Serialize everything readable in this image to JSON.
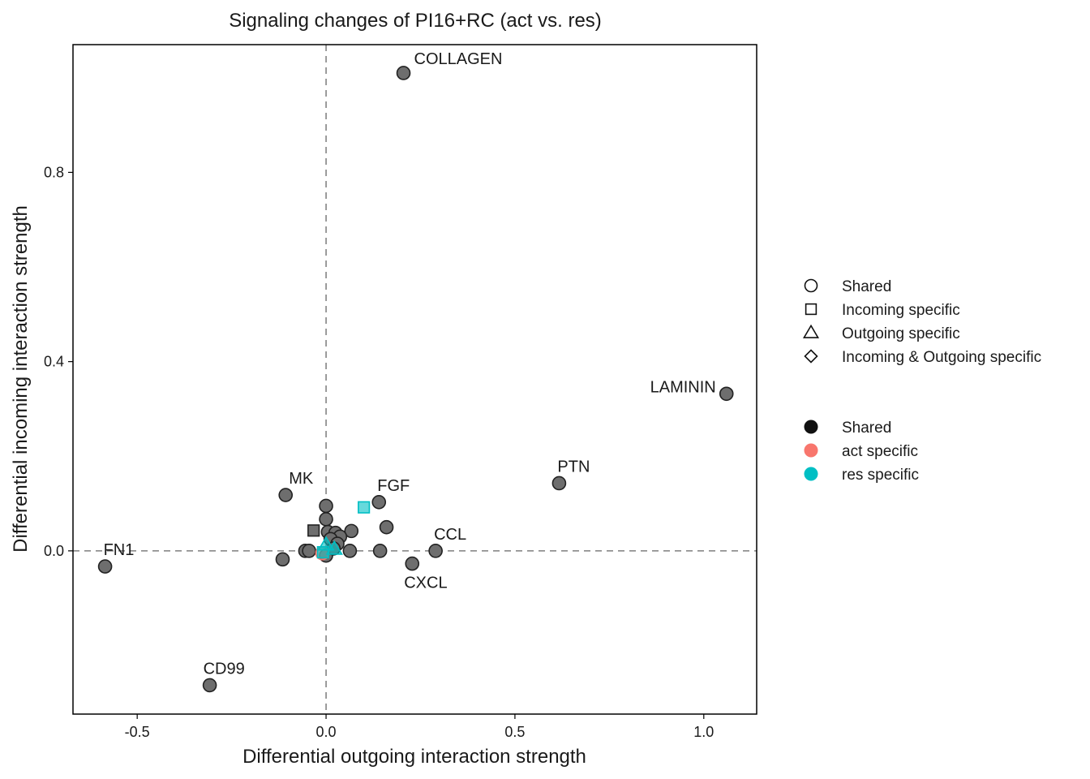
{
  "chart_data": {
    "type": "scatter",
    "title": "Signaling changes of PI16+RC (act vs. res)",
    "xlabel": "Differential outgoing interaction strength",
    "ylabel": "Differential incoming interaction strength",
    "xlim": [
      -0.67,
      1.14
    ],
    "ylim": [
      -0.345,
      1.07
    ],
    "xticks": [
      {
        "value": -0.5,
        "label": "-0.5"
      },
      {
        "value": 0.0,
        "label": "0.0"
      },
      {
        "value": 0.5,
        "label": "0.5"
      },
      {
        "value": 1.0,
        "label": "1.0"
      }
    ],
    "yticks": [
      {
        "value": 0.0,
        "label": "0.0"
      },
      {
        "value": 0.4,
        "label": "0.4"
      },
      {
        "value": 0.8,
        "label": "0.8"
      }
    ],
    "reference_lines": {
      "x": 0,
      "y": 0,
      "style": "dashed"
    },
    "grid": false,
    "colors": {
      "Shared": "#111111",
      "act specific": "#F8766D",
      "res specific": "#00BFC4",
      "point_fill_shared": "#6e6e6e"
    },
    "points": [
      {
        "x": 0.205,
        "y": 1.01,
        "label": "COLLAGEN",
        "shape": "circle",
        "group": "Shared"
      },
      {
        "x": 1.06,
        "y": 0.332,
        "label": "LAMININ",
        "shape": "circle",
        "group": "Shared"
      },
      {
        "x": 0.617,
        "y": 0.143,
        "label": "PTN",
        "shape": "circle",
        "group": "Shared"
      },
      {
        "x": 0.14,
        "y": 0.103,
        "label": "FGF",
        "shape": "circle",
        "group": "Shared"
      },
      {
        "x": -0.107,
        "y": 0.118,
        "label": "MK",
        "shape": "circle",
        "group": "Shared"
      },
      {
        "x": 0.29,
        "y": 0.0,
        "label": "CCL",
        "shape": "circle",
        "group": "Shared"
      },
      {
        "x": 0.228,
        "y": -0.027,
        "label": "CXCL",
        "shape": "circle",
        "group": "Shared"
      },
      {
        "x": -0.585,
        "y": -0.033,
        "label": "FN1",
        "shape": "circle",
        "group": "Shared"
      },
      {
        "x": -0.308,
        "y": -0.284,
        "label": "CD99",
        "shape": "circle",
        "group": "Shared"
      },
      {
        "x": 0.0,
        "y": 0.095,
        "label": "",
        "shape": "circle",
        "group": "Shared"
      },
      {
        "x": 0.0,
        "y": 0.067,
        "label": "",
        "shape": "circle",
        "group": "Shared"
      },
      {
        "x": 0.16,
        "y": 0.05,
        "label": "",
        "shape": "circle",
        "group": "Shared"
      },
      {
        "x": 0.067,
        "y": 0.042,
        "label": "",
        "shape": "circle",
        "group": "Shared"
      },
      {
        "x": 0.005,
        "y": 0.04,
        "label": "",
        "shape": "circle",
        "group": "Shared"
      },
      {
        "x": 0.025,
        "y": 0.038,
        "label": "",
        "shape": "circle",
        "group": "Shared"
      },
      {
        "x": 0.037,
        "y": 0.03,
        "label": "",
        "shape": "circle",
        "group": "Shared"
      },
      {
        "x": 0.012,
        "y": 0.025,
        "label": "",
        "shape": "circle",
        "group": "Shared"
      },
      {
        "x": 0.03,
        "y": 0.015,
        "label": "",
        "shape": "circle",
        "group": "Shared"
      },
      {
        "x": -0.115,
        "y": -0.018,
        "label": "",
        "shape": "circle",
        "group": "Shared"
      },
      {
        "x": -0.055,
        "y": 0.0,
        "label": "",
        "shape": "circle",
        "group": "Shared"
      },
      {
        "x": -0.045,
        "y": 0.0,
        "label": "",
        "shape": "circle",
        "group": "Shared"
      },
      {
        "x": 0.063,
        "y": 0.0,
        "label": "",
        "shape": "circle",
        "group": "Shared"
      },
      {
        "x": 0.143,
        "y": 0.0,
        "label": "",
        "shape": "circle",
        "group": "Shared"
      },
      {
        "x": 0.0,
        "y": -0.01,
        "label": "",
        "shape": "circle",
        "group": "Shared"
      },
      {
        "x": 0.02,
        "y": 0.005,
        "label": "",
        "shape": "circle",
        "group": "Shared"
      },
      {
        "x": -0.033,
        "y": 0.043,
        "label": "",
        "shape": "square",
        "group": "Shared"
      },
      {
        "x": 0.1,
        "y": 0.092,
        "label": "",
        "shape": "square",
        "group": "res specific"
      },
      {
        "x": -0.01,
        "y": -0.005,
        "label": "",
        "shape": "circle",
        "group": "act specific"
      },
      {
        "x": -0.008,
        "y": -0.003,
        "label": "",
        "shape": "square",
        "group": "res specific"
      },
      {
        "x": 0.0,
        "y": 0.013,
        "label": "",
        "shape": "triangle",
        "group": "res specific"
      },
      {
        "x": 0.022,
        "y": 0.004,
        "label": "",
        "shape": "triangle",
        "group": "res specific"
      }
    ],
    "legend": {
      "placement": "right",
      "shapes": [
        {
          "shape": "circle",
          "label": "Shared"
        },
        {
          "shape": "square",
          "label": "Incoming specific"
        },
        {
          "shape": "triangle",
          "label": "Outgoing specific"
        },
        {
          "shape": "diamond",
          "label": "Incoming & Outgoing specific"
        }
      ],
      "colors": [
        {
          "color": "#111111",
          "label": "Shared"
        },
        {
          "color": "#F8766D",
          "label": "act specific"
        },
        {
          "color": "#00BFC4",
          "label": "res specific"
        }
      ]
    }
  }
}
